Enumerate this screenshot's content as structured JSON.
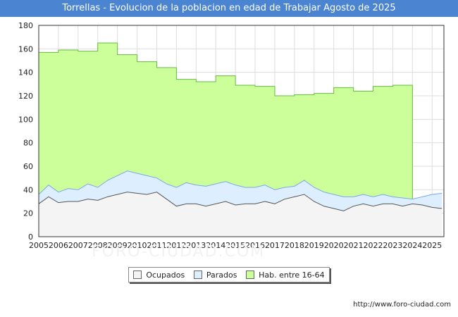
{
  "chart_data": {
    "type": "area",
    "title": "Torrellas - Evolucion de la poblacion en edad de Trabajar Agosto de 2025",
    "xlabel": "",
    "ylabel": "",
    "ylim": [
      0,
      180
    ],
    "xlim": [
      2005,
      2025.6
    ],
    "yticks": [
      0,
      20,
      40,
      60,
      80,
      100,
      120,
      140,
      160,
      180
    ],
    "xticks": [
      "2005",
      "2006",
      "2007",
      "2008",
      "2009",
      "2010",
      "2011",
      "2012",
      "2013",
      "2014",
      "2015",
      "2016",
      "2017",
      "2018",
      "2019",
      "2020",
      "2021",
      "2022",
      "2023",
      "2024",
      "2025"
    ],
    "grid": true,
    "legend_position": "bottom",
    "series": [
      {
        "name": "Hab. entre 16-64",
        "color": "#ccff99",
        "line_color": "#66bb44",
        "x": [
          2005,
          2006,
          2007,
          2008,
          2009,
          2010,
          2011,
          2012,
          2013,
          2014,
          2015,
          2016,
          2017,
          2018,
          2019,
          2020,
          2021,
          2022,
          2023,
          2024
        ],
        "values": [
          157,
          159,
          158,
          165,
          155,
          149,
          144,
          134,
          132,
          137,
          129,
          128,
          120,
          121,
          122,
          127,
          124,
          128,
          129,
          0
        ]
      },
      {
        "name": "Parados",
        "color": "#ddeeff",
        "line_color": "#7aa8e8",
        "x": [
          2005,
          2005.5,
          2006,
          2006.5,
          2007,
          2007.5,
          2008,
          2008.5,
          2009,
          2009.5,
          2010,
          2010.5,
          2011,
          2011.5,
          2012,
          2012.5,
          2013,
          2013.5,
          2014,
          2014.5,
          2015,
          2015.5,
          2016,
          2016.5,
          2017,
          2017.5,
          2018,
          2018.5,
          2019,
          2019.5,
          2020,
          2020.5,
          2021,
          2021.5,
          2022,
          2022.5,
          2023,
          2023.5,
          2024,
          2024.5,
          2025,
          2025.5
        ],
        "values": [
          36,
          44,
          38,
          41,
          40,
          45,
          42,
          48,
          52,
          56,
          54,
          52,
          50,
          45,
          42,
          46,
          44,
          43,
          45,
          47,
          44,
          42,
          42,
          44,
          40,
          42,
          43,
          48,
          42,
          38,
          36,
          34,
          34,
          36,
          34,
          36,
          34,
          33,
          32,
          34,
          36,
          37
        ]
      },
      {
        "name": "Ocupados",
        "color": "#f4f4f4",
        "line_color": "#555555",
        "x": [
          2005,
          2005.5,
          2006,
          2006.5,
          2007,
          2007.5,
          2008,
          2008.5,
          2009,
          2009.5,
          2010,
          2010.5,
          2011,
          2011.5,
          2012,
          2012.5,
          2013,
          2013.5,
          2014,
          2014.5,
          2015,
          2015.5,
          2016,
          2016.5,
          2017,
          2017.5,
          2018,
          2018.5,
          2019,
          2019.5,
          2020,
          2020.5,
          2021,
          2021.5,
          2022,
          2022.5,
          2023,
          2023.5,
          2024,
          2024.5,
          2025,
          2025.5
        ],
        "values": [
          28,
          34,
          29,
          30,
          30,
          32,
          31,
          34,
          36,
          38,
          37,
          36,
          38,
          32,
          26,
          28,
          28,
          26,
          28,
          30,
          27,
          28,
          28,
          30,
          28,
          32,
          34,
          36,
          30,
          26,
          24,
          22,
          26,
          28,
          26,
          28,
          28,
          26,
          28,
          27,
          25,
          24
        ]
      }
    ],
    "legend": [
      {
        "name": "Ocupados",
        "color": "#f4f4f4"
      },
      {
        "name": "Parados",
        "color": "#ddeeff"
      },
      {
        "name": "Hab. entre 16-64",
        "color": "#ccff99"
      }
    ],
    "source": "http://www.foro-ciudad.com",
    "watermark": "FORO-CIUDAD.COM"
  }
}
